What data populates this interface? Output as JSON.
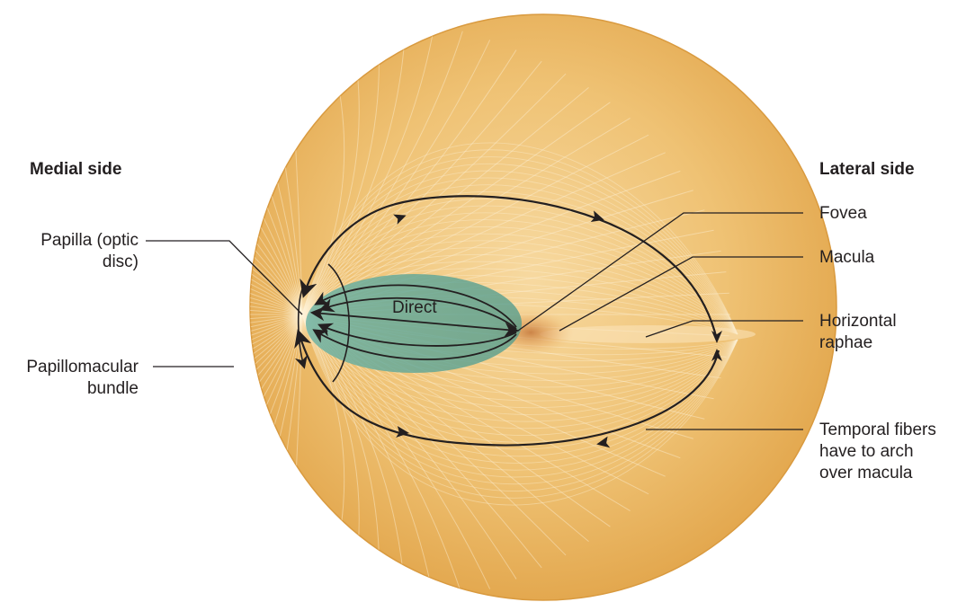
{
  "side_labels": {
    "medial": "Medial side",
    "lateral": "Lateral side"
  },
  "left_labels": {
    "papilla_line1": "Papilla (optic",
    "papilla_line2": "disc)",
    "papillomacular_line1": "Papillomacular",
    "papillomacular_line2": "bundle"
  },
  "right_labels": {
    "fovea": "Fovea",
    "macula": "Macula",
    "horizontal_line1": "Horizontal",
    "horizontal_line2": "raphae",
    "temporal_line1": "Temporal fibers",
    "temporal_line2": "have to arch",
    "temporal_line3": "over macula"
  },
  "center_label": "Direct",
  "colors": {
    "fundus_light": "#f6d596",
    "fundus_mid": "#eab45e",
    "fundus_rim": "#d99a3f",
    "bundle_fill": "#5fa89a",
    "fiber_line": "#231f20",
    "fovea_spot": "#c77a3a"
  }
}
